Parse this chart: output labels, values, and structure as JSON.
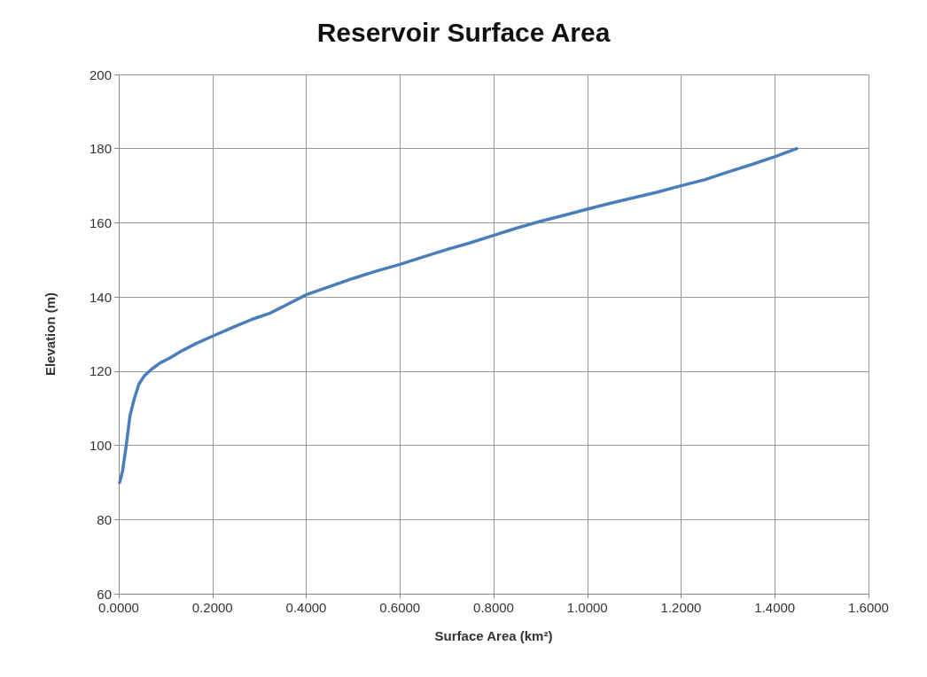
{
  "chart_data": {
    "type": "line",
    "title": "Reservoir Surface Area",
    "xlabel": "Surface Area (km²)",
    "ylabel": "Elevation (m)",
    "x": [
      0.002,
      0.008,
      0.015,
      0.024,
      0.033,
      0.043,
      0.055,
      0.07,
      0.088,
      0.108,
      0.135,
      0.164,
      0.205,
      0.247,
      0.285,
      0.322,
      0.36,
      0.4,
      0.45,
      0.5,
      0.55,
      0.6,
      0.65,
      0.7,
      0.75,
      0.8,
      0.85,
      0.9,
      0.95,
      1.0,
      1.05,
      1.1,
      1.15,
      1.2,
      1.25,
      1.3,
      1.35,
      1.4,
      1.447
    ],
    "series": [
      {
        "color": "#4a7ebb",
        "values": [
          90,
          93,
          99,
          108,
          112.5,
          116.5,
          118.8,
          120.5,
          122.2,
          123.5,
          125.5,
          127.4,
          129.7,
          132,
          134,
          135.6,
          138,
          140.6,
          142.8,
          145,
          147,
          148.8,
          150.8,
          152.8,
          154.6,
          156.6,
          158.6,
          160.4,
          162,
          163.7,
          165.3,
          166.8,
          168.3,
          170,
          171.6,
          173.7,
          175.7,
          177.8,
          180
        ]
      }
    ],
    "xlim": [
      0,
      1.6
    ],
    "xticks": [
      {
        "value": 0,
        "label": "0.0000"
      },
      {
        "value": 0.2,
        "label": "0.2000"
      },
      {
        "value": 0.4,
        "label": "0.4000"
      },
      {
        "value": 0.6,
        "label": "0.6000"
      },
      {
        "value": 0.8,
        "label": "0.8000"
      },
      {
        "value": 1.0,
        "label": "1.0000"
      },
      {
        "value": 1.2,
        "label": "1.2000"
      },
      {
        "value": 1.4,
        "label": "1.4000"
      },
      {
        "value": 1.6,
        "label": "1.6000"
      }
    ],
    "ylim": [
      60,
      200
    ],
    "yticks": [
      60,
      80,
      100,
      120,
      140,
      160,
      180,
      200
    ],
    "grid": true,
    "marker": "none",
    "line_style": "solid"
  }
}
